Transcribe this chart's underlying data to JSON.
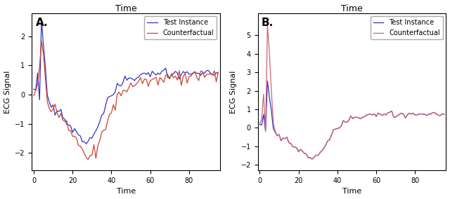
{
  "title_A": "Time",
  "title_B": "Time",
  "xlabel": "Time",
  "ylabel": "ECG Signal",
  "label_A": "A.",
  "label_B": "B.",
  "legend_test": "Test Instance",
  "legend_cf": "Counterfactual",
  "color_test": "#3333bb",
  "color_cf": "#cc4433",
  "color_cf_B": "#cc6677",
  "figsize": [
    6.4,
    2.84
  ],
  "dpi": 100,
  "xlim_A": [
    -1,
    96
  ],
  "xlim_B": [
    -1,
    96
  ],
  "ylim_A": [
    -2.6,
    2.8
  ],
  "ylim_B": [
    -2.3,
    6.2
  ],
  "xticks": [
    0,
    20,
    40,
    60,
    80
  ],
  "yticks_A": [
    -2,
    -1,
    0,
    1,
    2
  ],
  "yticks_B": [
    -2,
    -1,
    0,
    1,
    2,
    3,
    4,
    5
  ]
}
